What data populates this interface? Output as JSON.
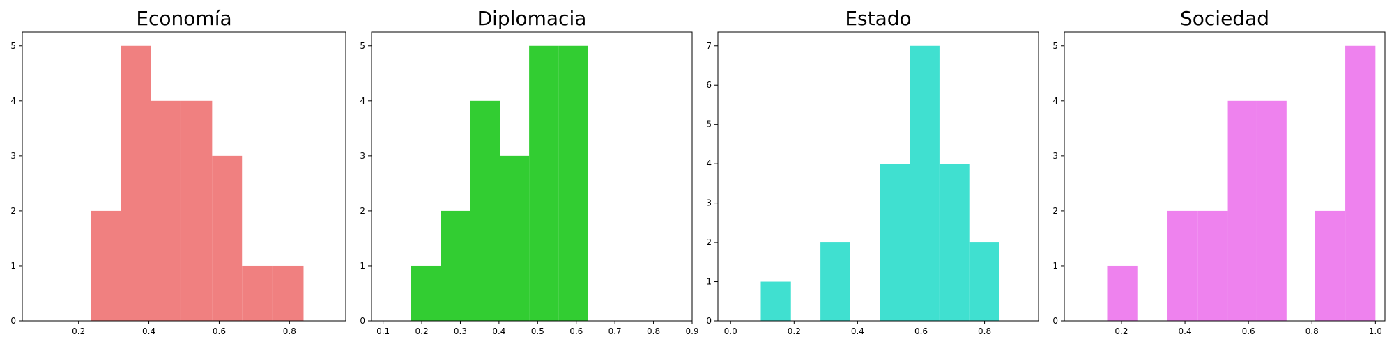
{
  "chart_data": [
    {
      "type": "bar",
      "subtype": "histogram",
      "title": "Economía",
      "xlabel": "",
      "ylabel": "",
      "color": "#f08080",
      "xlim": [
        0.04,
        0.96
      ],
      "ylim": [
        0,
        5.25
      ],
      "xticks": [
        0.2,
        0.4,
        0.6,
        0.8
      ],
      "xtick_labels": [
        "0.2",
        "0.4",
        "0.6",
        "0.8"
      ],
      "yticks": [
        0,
        1,
        2,
        3,
        4,
        5
      ],
      "ytick_labels": [
        "0",
        "1",
        "2",
        "3",
        "4",
        "5"
      ],
      "bins": [
        {
          "x0": 0.235,
          "x1": 0.32,
          "value": 2
        },
        {
          "x0": 0.32,
          "x1": 0.405,
          "value": 5
        },
        {
          "x0": 0.405,
          "x1": 0.49,
          "value": 4
        },
        {
          "x0": 0.49,
          "x1": 0.58,
          "value": 4
        },
        {
          "x0": 0.58,
          "x1": 0.665,
          "value": 3
        },
        {
          "x0": 0.665,
          "x1": 0.75,
          "value": 1
        },
        {
          "x0": 0.75,
          "x1": 0.84,
          "value": 1
        }
      ]
    },
    {
      "type": "bar",
      "subtype": "histogram",
      "title": "Diplomacia",
      "xlabel": "",
      "ylabel": "",
      "color": "#32cd32",
      "xlim": [
        0.07,
        0.9
      ],
      "ylim": [
        0,
        5.25
      ],
      "xticks": [
        0.1,
        0.2,
        0.3,
        0.4,
        0.5,
        0.6,
        0.7,
        0.8,
        0.9
      ],
      "xtick_labels": [
        "0.1",
        "0.2",
        "0.3",
        "0.4",
        "0.5",
        "0.6",
        "0.7",
        "0.8",
        "0.9"
      ],
      "yticks": [
        0,
        1,
        2,
        3,
        4,
        5
      ],
      "ytick_labels": [
        "0",
        "1",
        "2",
        "3",
        "4",
        "5"
      ],
      "bins": [
        {
          "x0": 0.172,
          "x1": 0.25,
          "value": 1
        },
        {
          "x0": 0.25,
          "x1": 0.326,
          "value": 2
        },
        {
          "x0": 0.326,
          "x1": 0.402,
          "value": 4
        },
        {
          "x0": 0.402,
          "x1": 0.478,
          "value": 3
        },
        {
          "x0": 0.478,
          "x1": 0.555,
          "value": 5
        },
        {
          "x0": 0.555,
          "x1": 0.631,
          "value": 5
        }
      ]
    },
    {
      "type": "bar",
      "subtype": "histogram",
      "title": "Estado",
      "xlabel": "",
      "ylabel": "",
      "color": "#40e0d0",
      "xlim": [
        -0.04,
        0.97
      ],
      "ylim": [
        0,
        7.35
      ],
      "xticks": [
        0.0,
        0.2,
        0.4,
        0.6,
        0.8
      ],
      "xtick_labels": [
        "0.0",
        "0.2",
        "0.4",
        "0.6",
        "0.8"
      ],
      "yticks": [
        0,
        1,
        2,
        3,
        4,
        5,
        6,
        7
      ],
      "ytick_labels": [
        "0",
        "1",
        "2",
        "3",
        "4",
        "5",
        "6",
        "7"
      ],
      "bins": [
        {
          "x0": 0.095,
          "x1": 0.19,
          "value": 1
        },
        {
          "x0": 0.283,
          "x1": 0.376,
          "value": 2
        },
        {
          "x0": 0.47,
          "x1": 0.564,
          "value": 4
        },
        {
          "x0": 0.564,
          "x1": 0.658,
          "value": 7
        },
        {
          "x0": 0.658,
          "x1": 0.752,
          "value": 4
        },
        {
          "x0": 0.752,
          "x1": 0.846,
          "value": 2
        }
      ]
    },
    {
      "type": "bar",
      "subtype": "histogram",
      "title": "Sociedad",
      "xlabel": "",
      "ylabel": "",
      "color": "#ee82ee",
      "xlim": [
        0.02,
        1.03
      ],
      "ylim": [
        0,
        5.25
      ],
      "xticks": [
        0.2,
        0.4,
        0.6,
        0.8,
        1.0
      ],
      "xtick_labels": [
        "0.2",
        "0.4",
        "0.6",
        "0.8",
        "1.0"
      ],
      "yticks": [
        0,
        1,
        2,
        3,
        4,
        5
      ],
      "ytick_labels": [
        "0",
        "1",
        "2",
        "3",
        "4",
        "5"
      ],
      "bins": [
        {
          "x0": 0.155,
          "x1": 0.25,
          "value": 1
        },
        {
          "x0": 0.345,
          "x1": 0.44,
          "value": 2
        },
        {
          "x0": 0.44,
          "x1": 0.535,
          "value": 2
        },
        {
          "x0": 0.535,
          "x1": 0.625,
          "value": 4
        },
        {
          "x0": 0.625,
          "x1": 0.72,
          "value": 4
        },
        {
          "x0": 0.81,
          "x1": 0.905,
          "value": 2
        },
        {
          "x0": 0.905,
          "x1": 1.0,
          "value": 5
        }
      ]
    }
  ]
}
